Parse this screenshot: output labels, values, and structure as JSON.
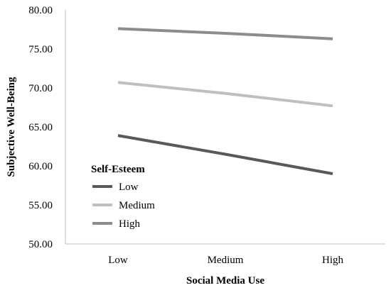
{
  "chart_data": {
    "type": "line",
    "categories": [
      "Low",
      "Medium",
      "High"
    ],
    "series": [
      {
        "name": "Low",
        "values": [
          63.9,
          61.5,
          59.0
        ],
        "color": "#595959"
      },
      {
        "name": "Medium",
        "values": [
          70.7,
          69.3,
          67.7
        ],
        "color": "#bfbfbf"
      },
      {
        "name": "High",
        "values": [
          77.6,
          77.0,
          76.3
        ],
        "color": "#8c8c8c"
      }
    ],
    "xlabel": "Social Media Use",
    "ylabel": "Subjective Well-Being",
    "ylim": [
      50,
      80
    ],
    "yticks": [
      "50.00",
      "55.00",
      "60.00",
      "65.00",
      "70.00",
      "75.00",
      "80.00"
    ],
    "legend": {
      "title": "Self-Esteem",
      "placement": "lower-left"
    },
    "grid": false
  }
}
